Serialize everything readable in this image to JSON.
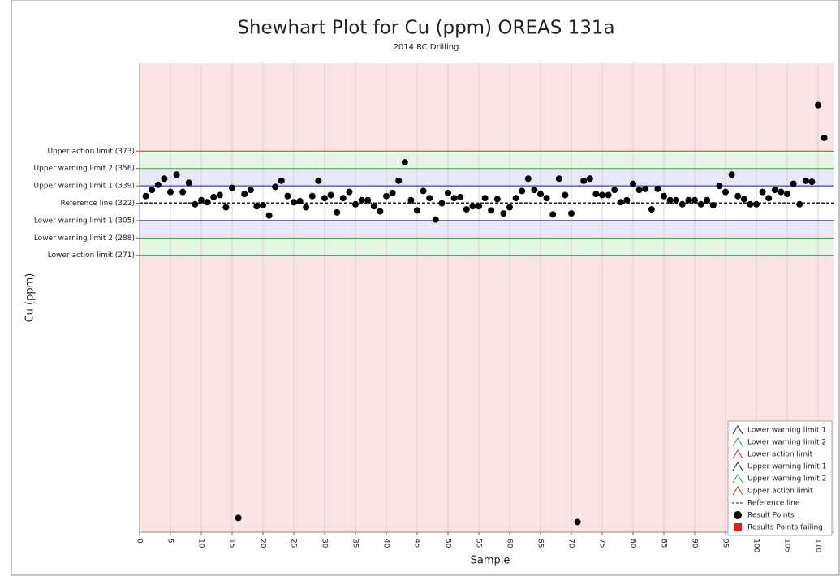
{
  "chart_data": {
    "type": "scatter",
    "title": "Shewhart Plot for Cu (ppm) OREAS 131a",
    "subtitle": "2014 RC Drilling",
    "x_label": "Sample",
    "y_label": "Cu (ppm)",
    "xlim": [
      0,
      112.5
    ],
    "ylim": [
      0,
      459
    ],
    "xticks": [
      0,
      5,
      10,
      15,
      20,
      25,
      30,
      35,
      40,
      45,
      50,
      55,
      60,
      65,
      70,
      75,
      80,
      85,
      90,
      95,
      100,
      105,
      110
    ],
    "grid": true,
    "background": "#fde4e4",
    "limits": [
      {
        "label": "Upper action limit (373)",
        "value": 373,
        "color": "#cc3333",
        "fill": "#e6f6e6"
      },
      {
        "label": "Lower action limit (271)",
        "value": 271,
        "color": "#cc3333",
        "fill": "#e6f6e6"
      },
      {
        "label": "Upper warning limit 2 (356)",
        "value": 356,
        "color": "#33aa33",
        "fill": "#e8e8fa"
      },
      {
        "label": "Lower warning limit 2 (288)",
        "value": 288,
        "color": "#33aa33",
        "fill": "#e8e8fa"
      },
      {
        "label": "Upper warning limit 1 (339)",
        "value": 339,
        "color": "#1a1a8c",
        "fill": "#ffffff"
      },
      {
        "label": "Lower warning limit 1 (305)",
        "value": 305,
        "color": "#1a1a8c",
        "fill": "#ffffff"
      },
      {
        "label": "Reference line (322)",
        "value": 322,
        "color": "#222222",
        "dash": true
      }
    ],
    "x": [
      1,
      2,
      3,
      4,
      5,
      6,
      7,
      8,
      9,
      10,
      11,
      12,
      13,
      14,
      15,
      16,
      17,
      18,
      19,
      20,
      21,
      22,
      23,
      24,
      25,
      26,
      27,
      28,
      29,
      30,
      31,
      32,
      33,
      34,
      35,
      36,
      37,
      38,
      39,
      40,
      41,
      42,
      43,
      44,
      45,
      46,
      47,
      48,
      49,
      50,
      51,
      52,
      53,
      54,
      55,
      56,
      57,
      58,
      59,
      60,
      61,
      62,
      63,
      64,
      65,
      66,
      67,
      68,
      69,
      70,
      71,
      72,
      73,
      74,
      75,
      76,
      77,
      78,
      79,
      80,
      81,
      82,
      83,
      84,
      85,
      86,
      87,
      88,
      89,
      90,
      91,
      92,
      93,
      94,
      95,
      96,
      97,
      98,
      99,
      100,
      101,
      102,
      103,
      104,
      105,
      106,
      107,
      108,
      109,
      110,
      111
    ],
    "series": [
      {
        "name": "Result Points",
        "color": "#000000",
        "values": [
          329,
          335,
          340,
          346,
          333,
          350,
          333,
          342,
          321,
          325,
          323,
          328,
          330,
          318,
          337,
          14,
          331,
          335,
          319,
          320,
          310,
          338,
          344,
          329,
          323,
          324,
          318,
          329,
          344,
          327,
          330,
          313,
          327,
          333,
          321,
          325,
          325,
          319,
          314,
          329,
          332,
          344,
          362,
          325,
          315,
          334,
          327,
          306,
          322,
          332,
          327,
          328,
          316,
          319,
          319,
          327,
          315,
          326,
          312,
          318,
          327,
          334,
          346,
          335,
          331,
          327,
          311,
          346,
          330,
          312,
          10,
          344,
          346,
          331,
          330,
          330,
          335,
          323,
          325,
          341,
          335,
          336,
          316,
          336,
          329,
          325,
          325,
          321,
          325,
          325,
          321,
          325,
          320,
          339,
          333,
          350,
          329,
          326,
          321,
          321,
          333,
          327,
          335,
          333,
          331,
          341,
          321,
          344,
          343,
          418,
          386
        ]
      }
    ],
    "legend": [
      {
        "name": "Lower warning limit 1",
        "color": "#1a1a8c",
        "symbol": "triangle"
      },
      {
        "name": "Lower warning limit 2",
        "color": "#33aa33",
        "symbol": "triangle"
      },
      {
        "name": "Lower action limit",
        "color": "#cc3333",
        "symbol": "triangle"
      },
      {
        "name": "Upper warning limit 1",
        "color": "#1a1a8c",
        "symbol": "triangle"
      },
      {
        "name": "Upper warning limit 2",
        "color": "#33aa33",
        "symbol": "triangle"
      },
      {
        "name": "Upper action limit",
        "color": "#cc3333",
        "symbol": "triangle"
      },
      {
        "name": "Reference line",
        "color": "#222222",
        "symbol": "dash"
      },
      {
        "name": "Result Points",
        "color": "#000000",
        "symbol": "dot"
      },
      {
        "name": "Results Points failing",
        "color": "#e02020",
        "symbol": "square"
      }
    ],
    "legend_position": "lower right"
  }
}
